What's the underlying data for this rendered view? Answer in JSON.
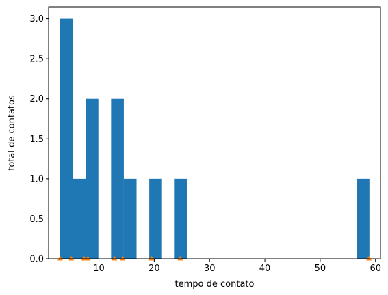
{
  "chart_data": {
    "type": "bar",
    "title": "",
    "xlabel": "tempo de contato",
    "ylabel": "total de contatos",
    "xlim": [
      0.9,
      60.9
    ],
    "ylim": [
      0,
      3.15
    ],
    "grid": false,
    "colors": {
      "bars": "#1f77b4",
      "markers": "#ff7f0e"
    },
    "x_ticks": [
      10,
      20,
      30,
      40,
      50,
      60
    ],
    "y_ticks": [
      0.0,
      0.5,
      1.0,
      1.5,
      2.0,
      2.5,
      3.0
    ],
    "x_tick_labels": [
      "10",
      "20",
      "30",
      "40",
      "50",
      "60"
    ],
    "y_tick_labels": [
      "0.0",
      "0.5",
      "1.0",
      "1.5",
      "2.0",
      "2.5",
      "3.0"
    ],
    "bins": [
      {
        "x0": 3.0,
        "x1": 5.3,
        "count": 3
      },
      {
        "x0": 5.3,
        "x1": 7.6,
        "count": 1
      },
      {
        "x0": 7.6,
        "x1": 9.9,
        "count": 2
      },
      {
        "x0": 9.9,
        "x1": 12.2,
        "count": 0
      },
      {
        "x0": 12.2,
        "x1": 14.5,
        "count": 2
      },
      {
        "x0": 14.5,
        "x1": 16.8,
        "count": 1
      },
      {
        "x0": 16.8,
        "x1": 19.1,
        "count": 0
      },
      {
        "x0": 19.1,
        "x1": 21.4,
        "count": 1
      },
      {
        "x0": 21.4,
        "x1": 23.7,
        "count": 0
      },
      {
        "x0": 23.7,
        "x1": 26.0,
        "count": 1
      },
      {
        "x0": 56.6,
        "x1": 58.9,
        "count": 1
      }
    ],
    "markers": [
      3.0,
      5.0,
      7.3,
      8.0,
      12.8,
      14.3,
      19.5,
      24.7,
      58.8
    ]
  }
}
